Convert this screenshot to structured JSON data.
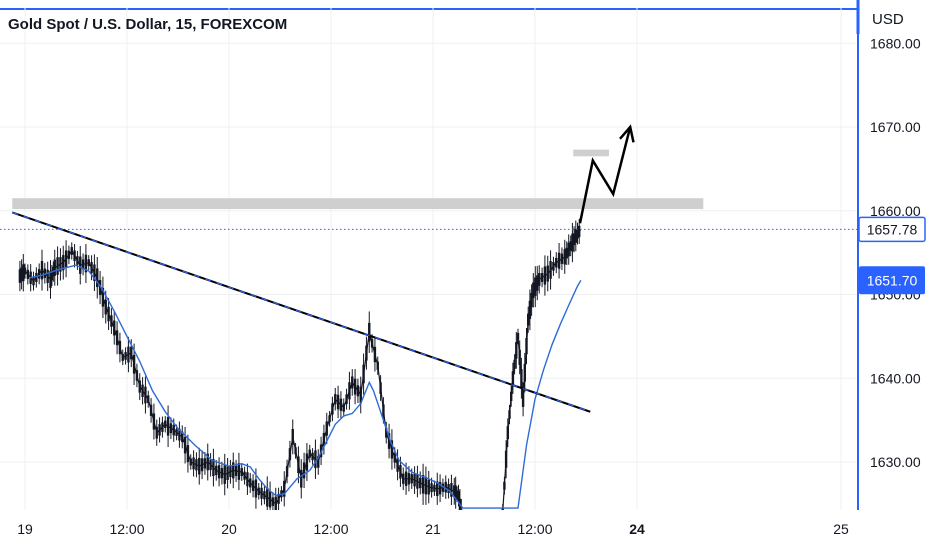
{
  "header": {
    "title": "Gold Spot / U.S. Dollar, 15, FOREXCOM",
    "currency": "USD"
  },
  "colors": {
    "accent_blue": "#2962ff",
    "candle": "#131722",
    "ma_line": "#2f6bd6",
    "zone": "#cfcfcf",
    "arrow": "#000000",
    "grid": "#eef0f3"
  },
  "chart_data": {
    "type": "line",
    "symbol": "XAUUSD",
    "timeframe": "15",
    "ylim": [
      1622,
      1686
    ],
    "price_axis_ticks": [
      "1680.00",
      "1670.00",
      "1660.00",
      "1650.00",
      "1640.00",
      "1630.00"
    ],
    "price_axis_values": [
      1680,
      1670,
      1660,
      1650,
      1640,
      1630
    ],
    "time_axis_ticks": [
      {
        "label": "19",
        "t": 0,
        "bold": false
      },
      {
        "label": "12:00",
        "t": 12,
        "bold": false
      },
      {
        "label": "20",
        "t": 24,
        "bold": false
      },
      {
        "label": "12:00",
        "t": 36,
        "bold": false
      },
      {
        "label": "21",
        "t": 48,
        "bold": false
      },
      {
        "label": "12:00",
        "t": 60,
        "bold": false
      },
      {
        "label": "24",
        "t": 72,
        "bold": true
      },
      {
        "label": "25",
        "t": 96,
        "bold": false
      }
    ],
    "price_tags": [
      {
        "label": "1657.78",
        "value": 1657.78,
        "style": "outline"
      },
      {
        "label": "1651.70",
        "value": 1651.7,
        "style": "filled"
      }
    ],
    "current_price": 1657.78,
    "price_series": {
      "name": "",
      "points": [
        [
          -0.6,
          1652.2
        ],
        [
          0,
          1652.8
        ],
        [
          1,
          1651.6
        ],
        [
          2,
          1652.9
        ],
        [
          3,
          1651.8
        ],
        [
          3.5,
          1653.2
        ],
        [
          4.5,
          1653.8
        ],
        [
          5.5,
          1655.2
        ],
        [
          6.5,
          1653.5
        ],
        [
          7.5,
          1653.8
        ],
        [
          8.5,
          1652.0
        ],
        [
          9.5,
          1648.5
        ],
        [
          10.5,
          1646.0
        ],
        [
          11.5,
          1642.5
        ],
        [
          12.5,
          1643.0
        ],
        [
          13.5,
          1639.0
        ],
        [
          14.5,
          1637.5
        ],
        [
          15.5,
          1633.5
        ],
        [
          16.5,
          1634.5
        ],
        [
          17.5,
          1633.8
        ],
        [
          18.5,
          1633.0
        ],
        [
          19.5,
          1630.0
        ],
        [
          20.5,
          1629.5
        ],
        [
          21.5,
          1630.0
        ],
        [
          22.5,
          1629.0
        ],
        [
          23.5,
          1628.5
        ],
        [
          24.5,
          1629.0
        ],
        [
          25.5,
          1628.8
        ],
        [
          26.5,
          1627.5
        ],
        [
          27.5,
          1626.5
        ],
        [
          28.5,
          1625.8
        ],
        [
          29.5,
          1625.0
        ],
        [
          30.5,
          1626.8
        ],
        [
          31.5,
          1633.0
        ],
        [
          32.5,
          1628.0
        ],
        [
          33.5,
          1631.0
        ],
        [
          34.5,
          1630.0
        ],
        [
          35.5,
          1634.0
        ],
        [
          36.5,
          1637.5
        ],
        [
          37.5,
          1636.5
        ],
        [
          38.5,
          1639.5
        ],
        [
          39.5,
          1638.0
        ],
        [
          40.5,
          1645.5
        ],
        [
          41.5,
          1641.5
        ],
        [
          42.5,
          1633.5
        ],
        [
          43.5,
          1630.5
        ],
        [
          44.5,
          1628.0
        ],
        [
          45.5,
          1628.0
        ],
        [
          46.5,
          1627.5
        ],
        [
          47.5,
          1627.0
        ],
        [
          48.5,
          1626.8
        ],
        [
          49.5,
          1627.0
        ],
        [
          50.5,
          1626.5
        ],
        [
          51.0,
          1626.0
        ],
        [
          51.5,
          1622.0
        ]
      ]
    },
    "price_series_2": {
      "name": "",
      "points": [
        [
          56.2,
          1624.0
        ],
        [
          56.8,
          1633.5
        ],
        [
          57.4,
          1640.0
        ],
        [
          58.0,
          1645.0
        ],
        [
          58.6,
          1637.5
        ],
        [
          59.2,
          1647.0
        ],
        [
          59.8,
          1650.5
        ],
        [
          60.5,
          1651.8
        ],
        [
          61.5,
          1652.5
        ],
        [
          62.5,
          1653.8
        ],
        [
          63.5,
          1654.5
        ],
        [
          64.2,
          1655.8
        ],
        [
          64.8,
          1657.0
        ],
        [
          65.4,
          1657.8
        ]
      ]
    },
    "moving_average": {
      "name": "",
      "points": [
        [
          0.5,
          1652.0
        ],
        [
          2.0,
          1652.3
        ],
        [
          4.0,
          1653.0
        ],
        [
          6.0,
          1653.5
        ],
        [
          7.5,
          1652.8
        ],
        [
          9.0,
          1650.8
        ],
        [
          10.5,
          1648.0
        ],
        [
          12.0,
          1645.0
        ],
        [
          13.5,
          1642.0
        ],
        [
          15.0,
          1638.5
        ],
        [
          16.5,
          1636.0
        ],
        [
          18.0,
          1634.0
        ],
        [
          20.0,
          1632.0
        ],
        [
          22.0,
          1630.2
        ],
        [
          24.0,
          1629.5
        ],
        [
          25.5,
          1629.8
        ],
        [
          26.5,
          1629.4
        ],
        [
          27.5,
          1628.0
        ],
        [
          28.5,
          1626.8
        ],
        [
          29.5,
          1626.0
        ],
        [
          30.5,
          1626.2
        ],
        [
          32.0,
          1628.0
        ],
        [
          33.5,
          1629.0
        ],
        [
          34.5,
          1630.5
        ],
        [
          35.5,
          1632.5
        ],
        [
          36.5,
          1634.5
        ],
        [
          37.5,
          1635.5
        ],
        [
          38.5,
          1635.8
        ],
        [
          39.5,
          1637.0
        ],
        [
          40.5,
          1639.5
        ],
        [
          41.0,
          1638.5
        ],
        [
          42.0,
          1635.5
        ],
        [
          43.0,
          1632.5
        ],
        [
          44.0,
          1630.2
        ],
        [
          45.5,
          1628.8
        ],
        [
          47.0,
          1628.2
        ],
        [
          48.5,
          1627.5
        ],
        [
          50.0,
          1626.5
        ],
        [
          51.5,
          1624.5
        ],
        [
          58.0,
          1624.5
        ],
        [
          59.0,
          1632.0
        ],
        [
          60.0,
          1637.5
        ],
        [
          61.0,
          1641.0
        ],
        [
          62.0,
          1644.0
        ],
        [
          63.0,
          1646.5
        ],
        [
          64.0,
          1648.8
        ],
        [
          65.0,
          1651.0
        ],
        [
          65.4,
          1651.7
        ]
      ]
    },
    "trend_line": {
      "start": [
        -1.5,
        1659.8
      ],
      "end": [
        66.5,
        1636.0
      ]
    },
    "resistance_zones": [
      {
        "t_start": -1.5,
        "t_end": 79.8,
        "y_low": 1660.2,
        "y_high": 1661.5
      },
      {
        "t_start": 64.5,
        "t_end": 68.7,
        "y_low": 1666.5,
        "y_high": 1667.3
      }
    ],
    "projection_path": [
      [
        65.3,
        1658.5
      ],
      [
        66.8,
        1666.0
      ],
      [
        69.2,
        1662.0
      ],
      [
        71.2,
        1670.0
      ]
    ],
    "time_range": [
      -1.5,
      101
    ]
  }
}
